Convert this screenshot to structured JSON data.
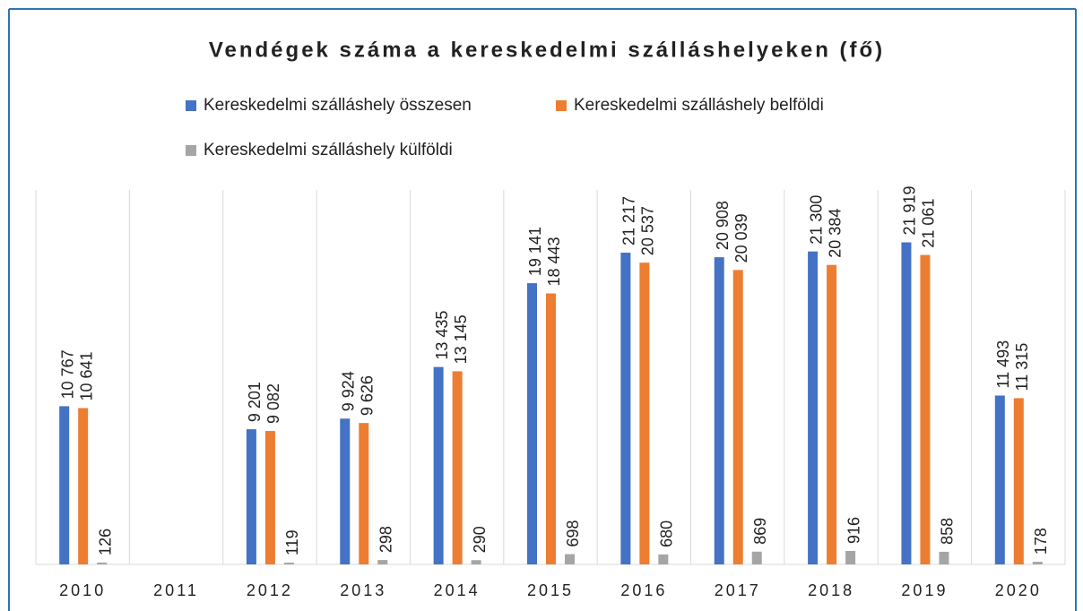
{
  "chart_data": {
    "type": "bar",
    "title": "Vendégek száma a kereskedelmi szálláshelyeken (fő)",
    "categories": [
      "2010",
      "2011",
      "2012",
      "2013",
      "2014",
      "2015",
      "2016",
      "2017",
      "2018",
      "2019",
      "2020"
    ],
    "series": [
      {
        "name": "Kereskedelmi szálláshely összesen",
        "color": "#4472c4",
        "values": [
          10767,
          null,
          9201,
          9924,
          13435,
          19141,
          21217,
          20908,
          21300,
          21919,
          11493
        ],
        "value_labels": [
          "10 767",
          null,
          "9 201",
          "9 924",
          "13 435",
          "19 141",
          "21 217",
          "20 908",
          "21 300",
          "21 919",
          "11 493"
        ]
      },
      {
        "name": "Kereskedelmi szálláshely belföldi",
        "color": "#ed7d31",
        "values": [
          10641,
          null,
          9082,
          9626,
          13145,
          18443,
          20537,
          20039,
          20384,
          21061,
          11315
        ],
        "value_labels": [
          "10 641",
          null,
          "9 082",
          "9 626",
          "13 145",
          "18 443",
          "20 537",
          "20 039",
          "20 384",
          "21 061",
          "11 315"
        ]
      },
      {
        "name": "Kereskedelmi szálláshely külföldi",
        "color": "#a5a5a5",
        "values": [
          126,
          null,
          119,
          298,
          290,
          698,
          680,
          869,
          916,
          858,
          178
        ]
      }
    ],
    "ylim": [
      0,
      25000
    ]
  }
}
